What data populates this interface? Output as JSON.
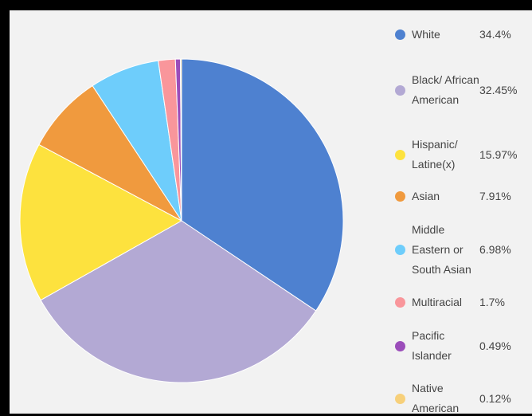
{
  "chart_data": {
    "type": "pie",
    "title": "",
    "categories": [
      "White",
      "Black/ African American",
      "Hispanic/ Latine(x)",
      "Asian",
      "Middle Eastern or South Asian",
      "Multiracial",
      "Pacific Islander",
      "Native American"
    ],
    "values": [
      34.4,
      32.45,
      15.97,
      7.91,
      6.98,
      1.7,
      0.49,
      0.12
    ],
    "value_labels": [
      "34.4%",
      "32.45%",
      "15.97%",
      "7.91%",
      "6.98%",
      "1.7%",
      "0.49%",
      "0.12%"
    ],
    "colors": [
      "#4e81d0",
      "#b3a9d4",
      "#fde23e",
      "#f09a3e",
      "#6ecdfb",
      "#f9969b",
      "#9b4dba",
      "#f7d07a"
    ],
    "legend_position": "right",
    "start_angle": "12 o'clock",
    "direction": "clockwise"
  },
  "legend": [
    {
      "label": "White",
      "value": "34.4%",
      "color": "#4e81d0"
    },
    {
      "label": "Black/ African American",
      "value": "32.45%",
      "color": "#b3a9d4"
    },
    {
      "label": "Hispanic/ Latine(x)",
      "value": "15.97%",
      "color": "#fde23e"
    },
    {
      "label": "Asian",
      "value": "7.91%",
      "color": "#f09a3e"
    },
    {
      "label": "Middle Eastern or South Asian",
      "value": "6.98%",
      "color": "#6ecdfb"
    },
    {
      "label": "Multiracial",
      "value": "1.7%",
      "color": "#f9969b"
    },
    {
      "label": "Pacific Islander",
      "value": "0.49%",
      "color": "#9b4dba"
    },
    {
      "label": "Native American",
      "value": "0.12%",
      "color": "#f7d07a"
    }
  ]
}
